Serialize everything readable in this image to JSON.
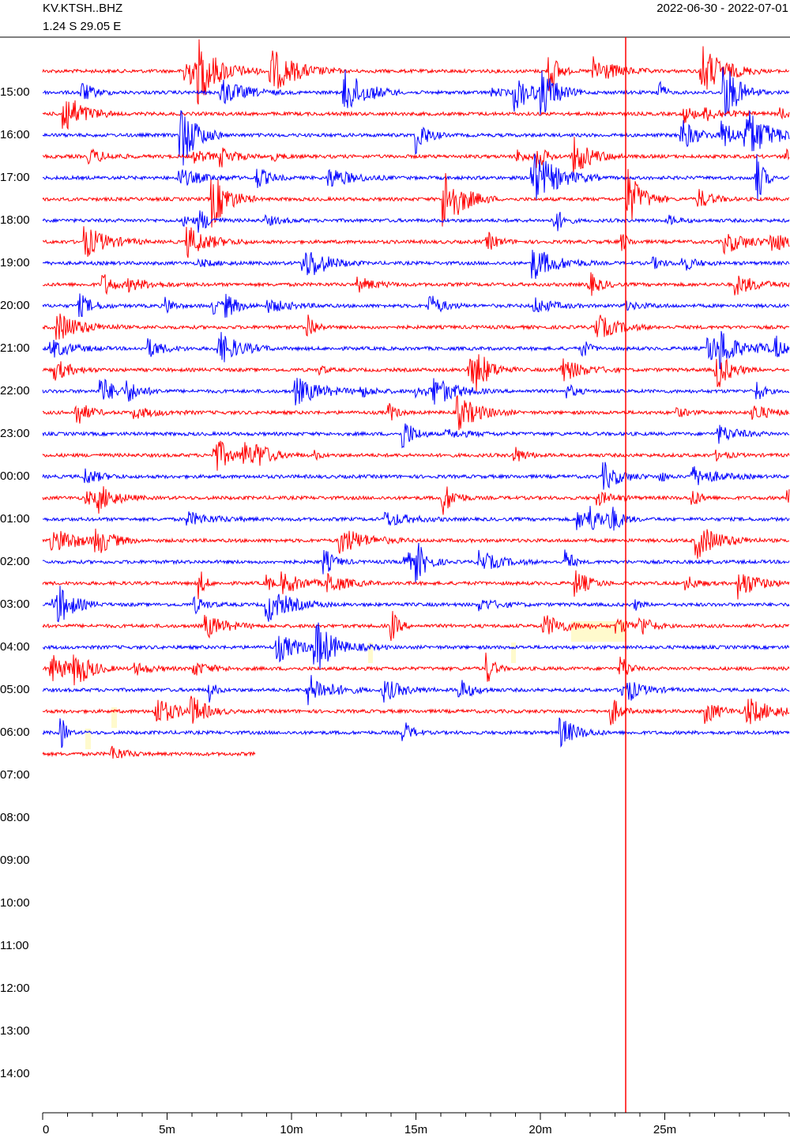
{
  "chart_data": {
    "type": "helicorder",
    "station": "KV.KTSH..BHZ",
    "location": "1.24 S 29.05 E",
    "date_range": "2022-06-30 - 2022-07-01",
    "hour_labels": [
      "15:00",
      "16:00",
      "17:00",
      "18:00",
      "19:00",
      "20:00",
      "21:00",
      "22:00",
      "23:00",
      "00:00",
      "01:00",
      "02:00",
      "03:00",
      "04:00",
      "05:00",
      "06:00",
      "07:00",
      "08:00",
      "09:00",
      "10:00",
      "11:00",
      "12:00",
      "13:00",
      "14:00"
    ],
    "xlim": [
      0,
      30
    ],
    "xticks": [
      0,
      {
        "value": 5,
        "label": "5m"
      },
      {
        "value": 10,
        "label": "10m"
      },
      {
        "value": 15,
        "label": "15m"
      },
      {
        "value": 20,
        "label": "20m"
      },
      {
        "value": 25,
        "label": "25m"
      }
    ],
    "trace_colors": [
      "#ff0000",
      "#0000ff"
    ]
  }
}
